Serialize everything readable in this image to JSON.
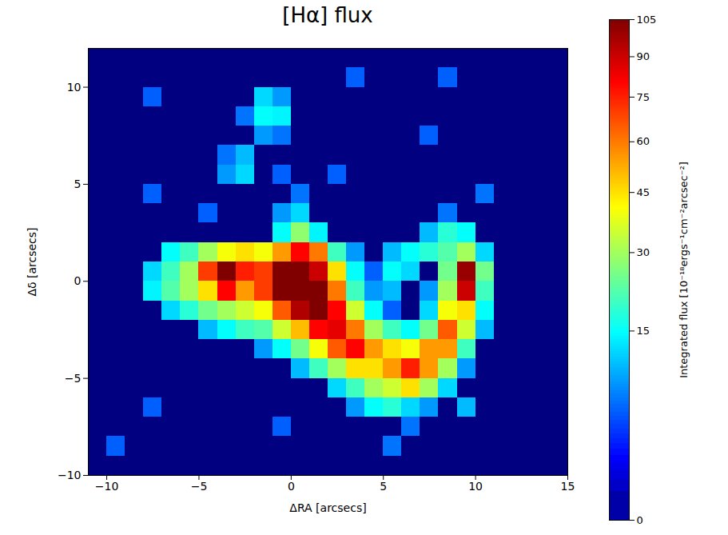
{
  "chart_data": {
    "type": "heatmap",
    "title": "[Hα] flux",
    "x_label": "ΔRA [arcsecs]",
    "y_label": "Δδ [arcsecs]",
    "xlim": [
      -11,
      15
    ],
    "ylim": [
      -10,
      12
    ],
    "xticks": [
      -10,
      -5,
      0,
      5,
      10,
      15
    ],
    "yticks": [
      -10,
      -5,
      0,
      5,
      10
    ],
    "x": [
      -10.5,
      -9.5,
      -8.5,
      -7.5,
      -6.5,
      -5.5,
      -4.5,
      -3.5,
      -2.5,
      -1.5,
      -0.5,
      0.5,
      1.5,
      2.5,
      3.5,
      4.5,
      5.5,
      6.5,
      7.5,
      8.5,
      9.5,
      10.5,
      11.5,
      12.5,
      13.5,
      14.5
    ],
    "y": [
      11.5,
      10.5,
      9.5,
      8.5,
      7.5,
      6.5,
      5.5,
      4.5,
      3.5,
      2.5,
      1.5,
      0.5,
      -0.5,
      -1.5,
      -2.5,
      -3.5,
      -4.5,
      -5.5,
      -6.5,
      -7.5,
      -8.5,
      -9.5
    ],
    "values": [
      [
        0,
        0,
        0,
        0,
        0,
        0,
        0,
        0,
        0,
        0,
        0,
        0,
        0,
        0,
        0,
        0,
        0,
        0,
        0,
        0,
        0,
        0,
        0,
        0,
        0,
        0
      ],
      [
        0,
        0,
        0,
        0,
        0,
        0,
        0,
        0,
        0,
        0,
        0,
        0,
        0,
        0,
        5,
        0,
        0,
        0,
        0,
        5,
        0,
        0,
        0,
        0,
        0,
        0
      ],
      [
        0,
        0,
        0,
        5,
        0,
        0,
        0,
        0,
        0,
        12,
        8,
        0,
        0,
        0,
        0,
        0,
        0,
        0,
        0,
        0,
        0,
        0,
        0,
        0,
        0,
        0
      ],
      [
        0,
        0,
        0,
        0,
        0,
        0,
        0,
        0,
        6,
        15,
        14,
        0,
        0,
        0,
        0,
        0,
        0,
        0,
        0,
        0,
        0,
        0,
        0,
        0,
        0,
        0
      ],
      [
        0,
        0,
        0,
        0,
        0,
        0,
        0,
        0,
        0,
        8,
        6,
        0,
        0,
        0,
        0,
        0,
        0,
        0,
        5,
        0,
        0,
        0,
        0,
        0,
        0,
        0
      ],
      [
        0,
        0,
        0,
        0,
        0,
        0,
        0,
        6,
        10,
        0,
        0,
        0,
        0,
        0,
        0,
        0,
        0,
        0,
        0,
        0,
        0,
        0,
        0,
        0,
        0,
        0
      ],
      [
        0,
        0,
        0,
        0,
        0,
        0,
        0,
        8,
        12,
        0,
        5,
        0,
        0,
        5,
        0,
        0,
        0,
        0,
        0,
        0,
        0,
        0,
        0,
        0,
        0,
        0
      ],
      [
        0,
        0,
        0,
        5,
        0,
        0,
        0,
        0,
        0,
        0,
        0,
        6,
        0,
        0,
        0,
        0,
        0,
        0,
        0,
        0,
        0,
        6,
        0,
        0,
        0,
        0
      ],
      [
        0,
        0,
        0,
        0,
        0,
        0,
        5,
        0,
        0,
        0,
        8,
        12,
        0,
        0,
        0,
        0,
        0,
        0,
        0,
        6,
        0,
        0,
        0,
        0,
        0,
        0
      ],
      [
        0,
        0,
        0,
        0,
        0,
        0,
        0,
        0,
        0,
        0,
        15,
        28,
        14,
        0,
        0,
        0,
        0,
        0,
        10,
        18,
        15,
        0,
        0,
        0,
        0,
        0
      ],
      [
        0,
        0,
        0,
        0,
        15,
        20,
        30,
        40,
        45,
        40,
        55,
        80,
        60,
        20,
        8,
        0,
        10,
        15,
        18,
        22,
        30,
        12,
        0,
        0,
        0,
        0
      ],
      [
        0,
        0,
        0,
        12,
        20,
        30,
        70,
        105,
        75,
        70,
        105,
        105,
        90,
        45,
        15,
        5,
        15,
        12,
        0,
        25,
        100,
        25,
        0,
        0,
        0,
        0
      ],
      [
        0,
        0,
        0,
        14,
        22,
        30,
        45,
        80,
        55,
        70,
        105,
        105,
        105,
        60,
        20,
        8,
        10,
        0,
        8,
        30,
        90,
        20,
        0,
        0,
        0,
        0
      ],
      [
        0,
        0,
        0,
        0,
        12,
        18,
        25,
        30,
        35,
        40,
        65,
        95,
        105,
        80,
        35,
        15,
        5,
        0,
        12,
        40,
        45,
        15,
        0,
        0,
        0,
        0
      ],
      [
        0,
        0,
        0,
        0,
        0,
        0,
        10,
        15,
        20,
        22,
        35,
        50,
        80,
        85,
        60,
        30,
        20,
        15,
        25,
        65,
        35,
        10,
        0,
        0,
        0,
        0
      ],
      [
        0,
        0,
        0,
        0,
        0,
        0,
        0,
        0,
        0,
        8,
        15,
        25,
        40,
        65,
        80,
        55,
        45,
        40,
        55,
        55,
        20,
        0,
        0,
        0,
        0,
        0
      ],
      [
        0,
        0,
        0,
        0,
        0,
        0,
        0,
        0,
        0,
        0,
        0,
        10,
        20,
        30,
        45,
        45,
        55,
        75,
        55,
        30,
        8,
        0,
        0,
        0,
        0,
        0
      ],
      [
        0,
        0,
        0,
        0,
        0,
        0,
        0,
        0,
        0,
        0,
        0,
        0,
        0,
        12,
        20,
        30,
        35,
        45,
        30,
        12,
        0,
        0,
        0,
        0,
        0,
        0
      ],
      [
        0,
        0,
        0,
        5,
        0,
        0,
        0,
        0,
        0,
        0,
        0,
        0,
        0,
        0,
        8,
        15,
        18,
        12,
        8,
        0,
        10,
        0,
        0,
        0,
        0,
        0
      ],
      [
        0,
        0,
        0,
        0,
        0,
        0,
        0,
        0,
        0,
        0,
        5,
        0,
        0,
        0,
        0,
        0,
        0,
        6,
        0,
        0,
        0,
        0,
        0,
        0,
        0,
        0
      ],
      [
        0,
        5,
        0,
        0,
        0,
        0,
        0,
        0,
        0,
        0,
        0,
        0,
        0,
        0,
        0,
        0,
        6,
        0,
        0,
        0,
        0,
        0,
        0,
        0,
        0,
        0
      ],
      [
        0,
        0,
        0,
        0,
        0,
        0,
        0,
        0,
        0,
        0,
        0,
        0,
        0,
        0,
        0,
        0,
        0,
        0,
        0,
        0,
        0,
        0,
        0,
        0,
        0,
        0
      ]
    ],
    "colorbar": {
      "label": "Integrated flux [10⁻¹⁸ergs⁻¹cm⁻²arcsec⁻²]",
      "range": [
        0,
        105
      ],
      "ticks": [
        0,
        15,
        30,
        45,
        60,
        75,
        90,
        105
      ]
    }
  }
}
